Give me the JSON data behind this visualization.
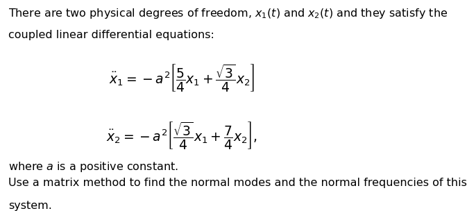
{
  "figsize": [
    6.73,
    3.04
  ],
  "dpi": 100,
  "background_color": "#ffffff",
  "text_color": "#000000",
  "font_size_body": 11.5,
  "font_size_eq": 13.5,
  "line1": "There are two physical degrees of freedom, $x_1(t)$ and $x_2(t)$ and they satisfy the",
  "line2": "coupled linear differential equations:",
  "para2": "where $a$ is a positive constant.",
  "para3a": "Use a matrix method to find the normal modes and the normal frequencies of this",
  "para3b": "system."
}
